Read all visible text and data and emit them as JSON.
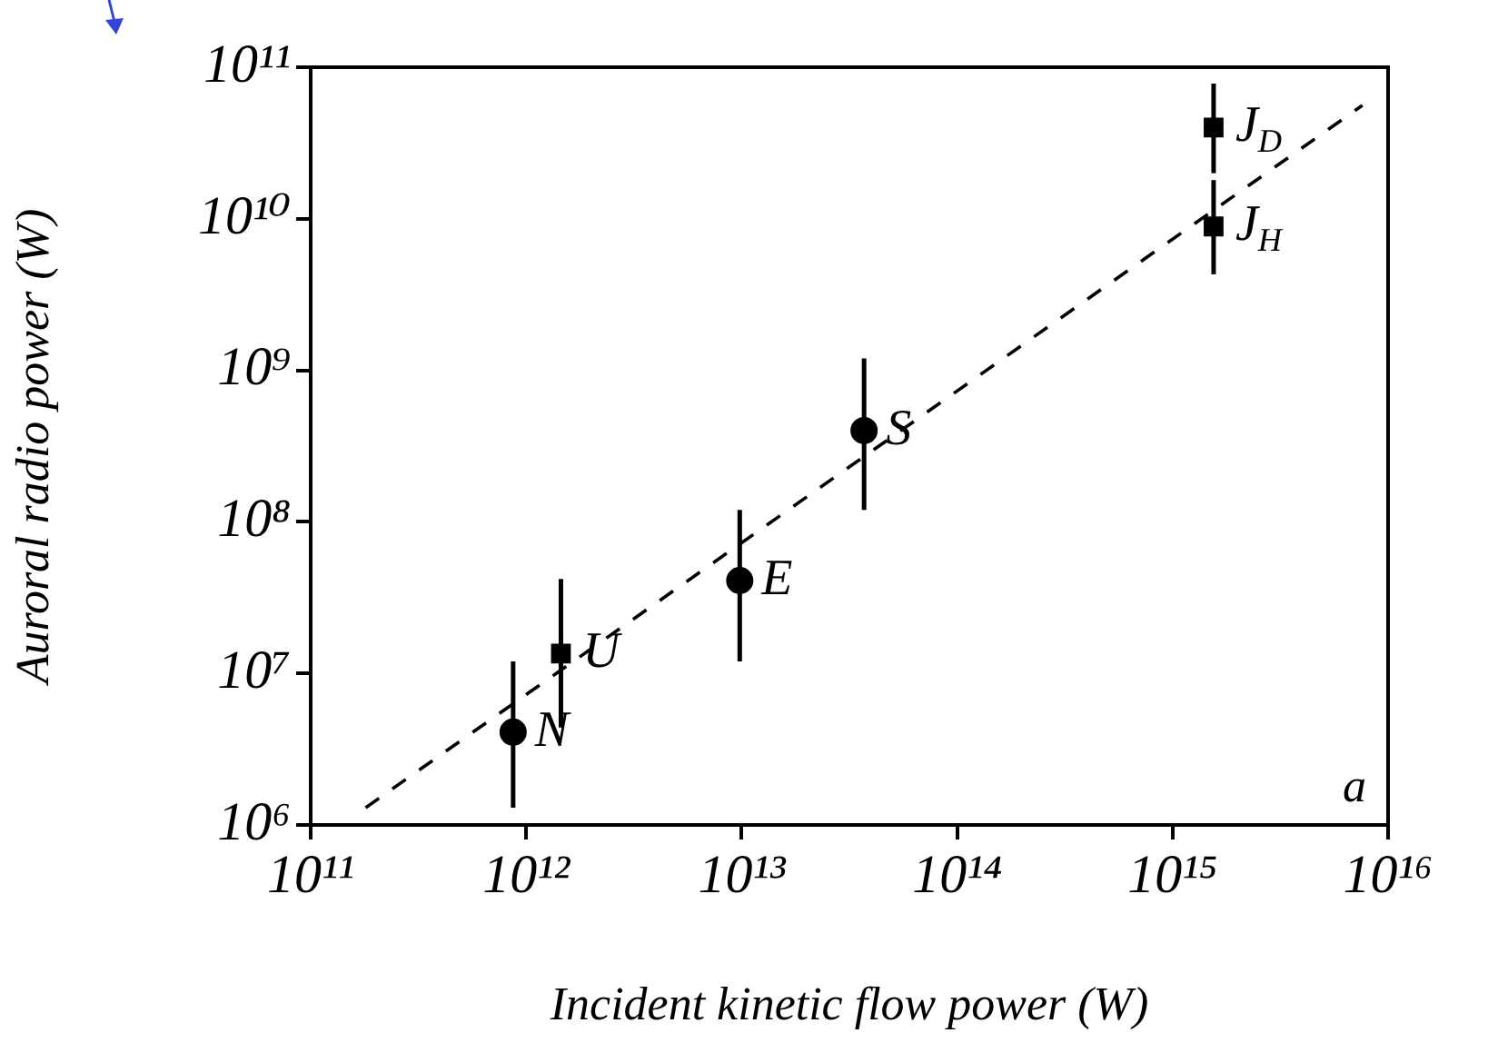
{
  "chart_data": {
    "type": "scatter",
    "xlabel": "Incident kinetic flow power (W)",
    "ylabel": "Auroral radio power (W)",
    "log": "xy",
    "grid": false,
    "legend": false,
    "xlim": [
      100000000000.0,
      1e+16
    ],
    "ylim": [
      1000000.0,
      100000000000.0
    ],
    "xticks": [
      {
        "value": 100000000000.0,
        "label": "10¹¹"
      },
      {
        "value": 1000000000000.0,
        "label": "10¹²"
      },
      {
        "value": 10000000000000.0,
        "label": "10¹³"
      },
      {
        "value": 100000000000000.0,
        "label": "10¹⁴"
      },
      {
        "value": 1000000000000000.0,
        "label": "10¹⁵"
      },
      {
        "value": 1e+16,
        "label": "10¹⁶"
      }
    ],
    "yticks": [
      {
        "value": 1000000.0,
        "label": "10⁶"
      },
      {
        "value": 10000000.0,
        "label": "10⁷"
      },
      {
        "value": 100000000.0,
        "label": "10⁸"
      },
      {
        "value": 1000000000.0,
        "label": "10⁹"
      },
      {
        "value": 10000000000.0,
        "label": "10¹⁰"
      },
      {
        "value": 100000000000.0,
        "label": "10¹¹"
      }
    ],
    "series": [
      {
        "color": "#000000",
        "marker": "circle",
        "x": [
          870000000000.0,
          9800000000000.0,
          37000000000000.0
        ],
        "values": [
          4100000.0,
          41000000.0,
          400000000.0
        ],
        "errors": [
          [
            1300000.0,
            12000000.0
          ],
          [
            12000000.0,
            120000000.0
          ],
          [
            120000000.0,
            1200000000.0
          ]
        ]
      },
      {
        "color": "#000000",
        "marker": "square",
        "x": [
          1450000000000.0,
          1550000000000000.0,
          1550000000000000.0
        ],
        "values": [
          13500000.0,
          40000000000.0,
          8900000000.0
        ],
        "errors": [
          [
            4400000.0,
            42000000.0
          ],
          [
            20000000000.0,
            78000000000.0
          ],
          [
            4300000000.0,
            18000000000.0
          ]
        ]
      },
      {
        "type": "line",
        "color": "#000000",
        "marker": "none",
        "line_style": "dashed",
        "x": [
          180000000000.0,
          7600000000000000.0
        ],
        "values": [
          1300000.0,
          56000000000.0
        ]
      }
    ],
    "annotations": [
      {
        "text": "N",
        "x": 870000000000.0,
        "y": 4100000.0
      },
      {
        "text": "U",
        "x": 1450000000000.0,
        "y": 13500000.0
      },
      {
        "text": "E",
        "x": 9800000000000.0,
        "y": 41000000.0
      },
      {
        "text": "S",
        "x": 37000000000000.0,
        "y": 400000000.0
      },
      {
        "text": "J$_{D}$",
        "x": 1550000000000000.0,
        "y": 40000000000.0
      },
      {
        "text": "J$_{H}$",
        "x": 1550000000000000.0,
        "y": 8900000000.0
      },
      "a"
    ]
  }
}
